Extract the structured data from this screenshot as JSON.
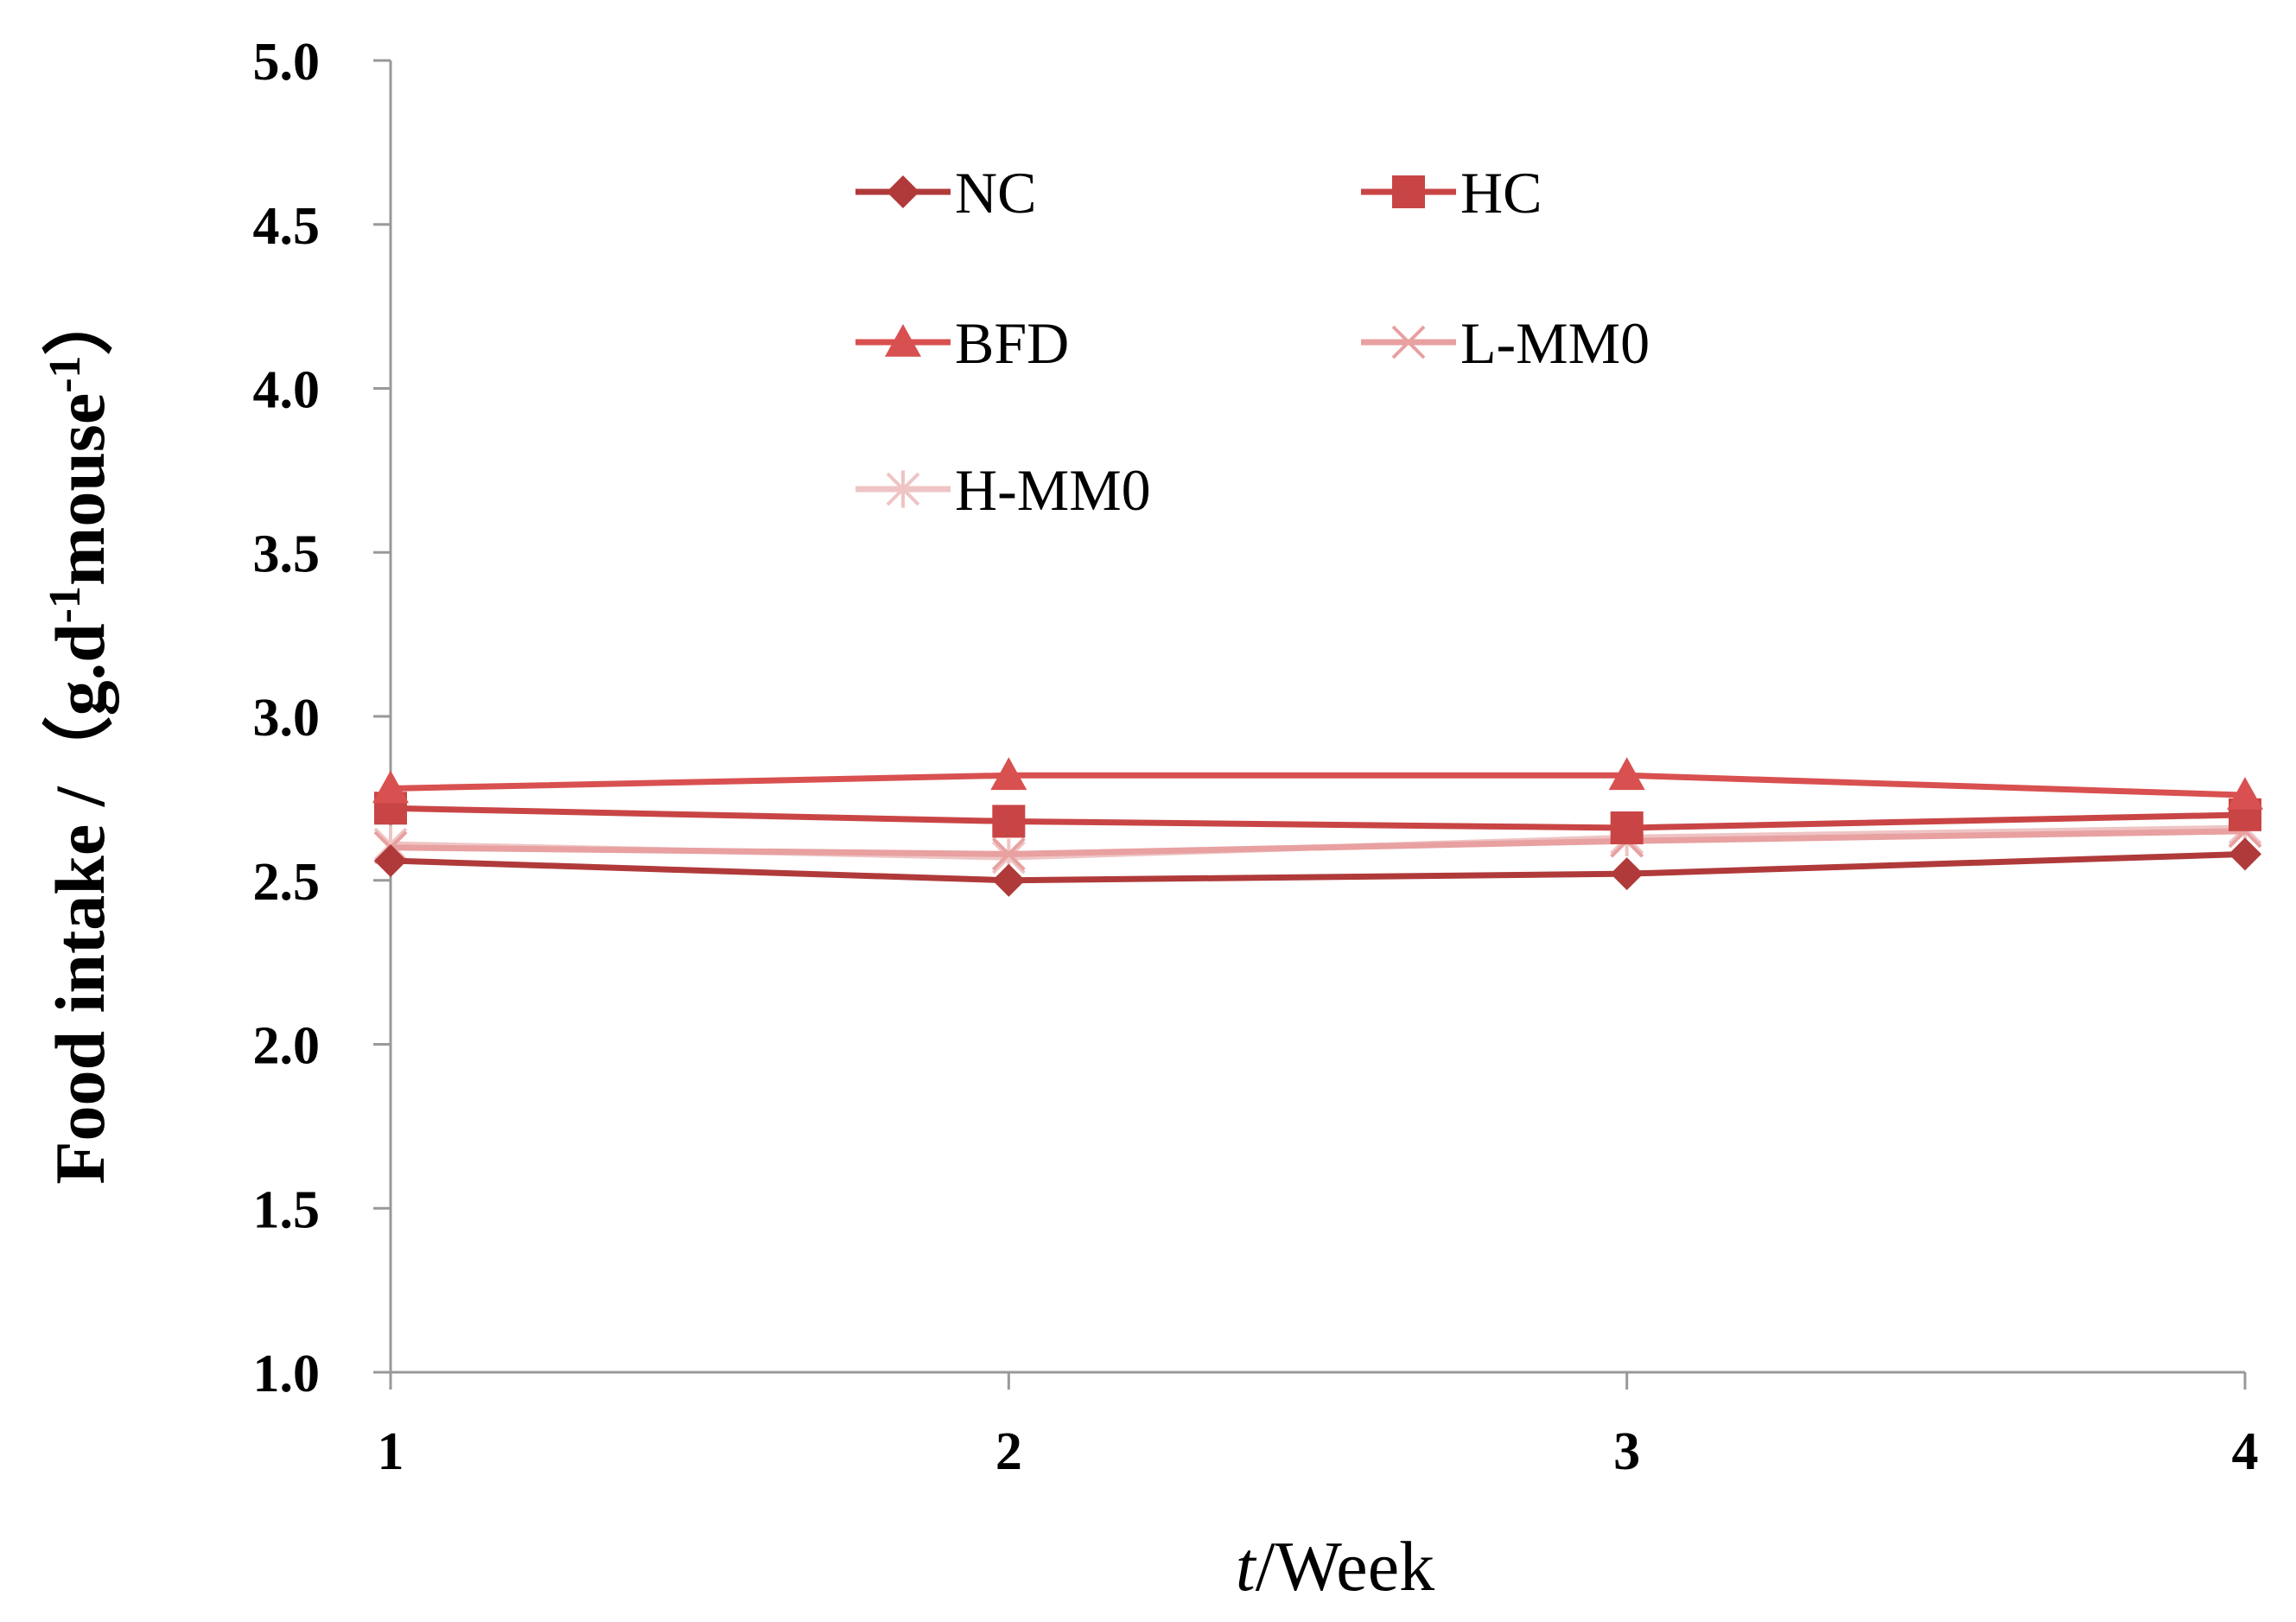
{
  "chart_data": {
    "type": "line",
    "title": "",
    "xlabel_italic": "t",
    "xlabel_rest": "/Week",
    "ylabel_main": "Food intake /（g.d",
    "ylabel_sup1": "-1",
    "ylabel_mid": "mouse",
    "ylabel_sup2": "-1",
    "ylabel_end": "）",
    "x": [
      1,
      2,
      3,
      4
    ],
    "x_tick_labels": [
      "1",
      "2",
      "3",
      "4"
    ],
    "ylim": [
      1.0,
      5.0
    ],
    "y_ticks": [
      1.0,
      1.5,
      2.0,
      2.5,
      3.0,
      3.5,
      4.0,
      4.5,
      5.0
    ],
    "y_tick_labels": [
      "1.0",
      "1.5",
      "2.0",
      "2.5",
      "3.0",
      "3.5",
      "4.0",
      "4.5",
      "5.0"
    ],
    "legend_position": "top-center",
    "series": [
      {
        "name": "NC",
        "values": [
          2.56,
          2.5,
          2.52,
          2.58
        ],
        "marker": "diamond",
        "color": "#b03a3a"
      },
      {
        "name": "HC",
        "values": [
          2.72,
          2.68,
          2.66,
          2.7
        ],
        "marker": "square",
        "color": "#c94545"
      },
      {
        "name": "BFD",
        "values": [
          2.78,
          2.82,
          2.82,
          2.76
        ],
        "marker": "triangle",
        "color": "#d95050"
      },
      {
        "name": "L-MM0",
        "values": [
          2.6,
          2.58,
          2.62,
          2.65
        ],
        "marker": "x",
        "color": "#e8a0a0"
      },
      {
        "name": "H-MM0",
        "values": [
          2.61,
          2.57,
          2.63,
          2.66
        ],
        "marker": "asterisk",
        "color": "#efc4c4"
      }
    ]
  }
}
